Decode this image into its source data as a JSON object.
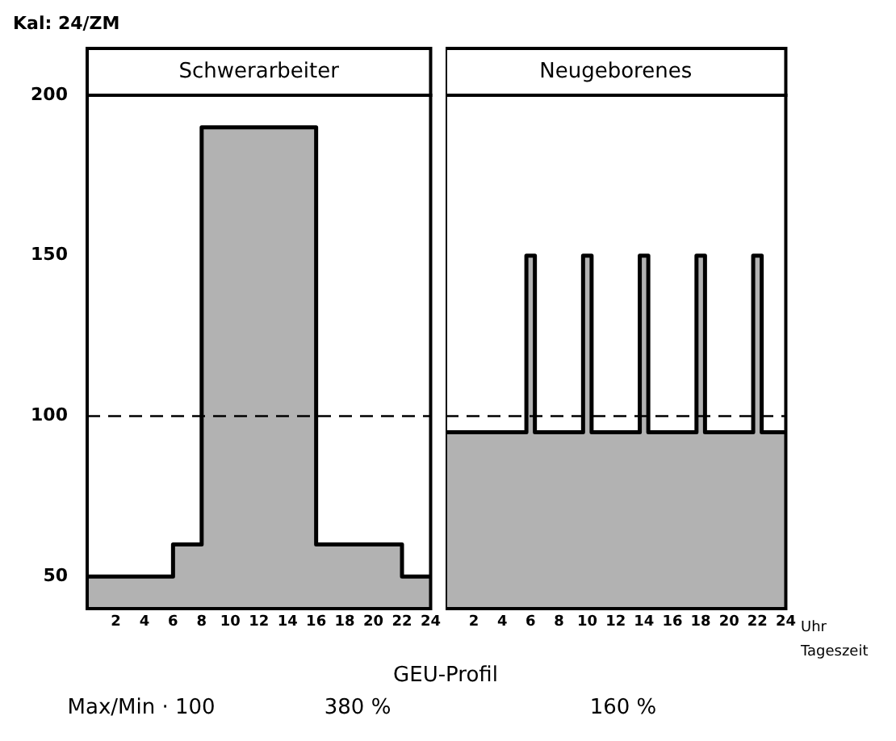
{
  "chart_data": [
    {
      "type": "area",
      "title": "Schwerarbeiter",
      "ylabel": "Kal: 24/ZM",
      "xlabel": "GEU-Profil",
      "x": [
        0,
        6,
        6,
        8,
        8,
        16,
        16,
        22,
        22,
        24
      ],
      "series": [
        {
          "color": "#000000",
          "values": [
            50,
            50,
            60,
            60,
            190,
            190,
            60,
            60,
            50,
            50
          ]
        }
      ],
      "xlim": [
        0,
        24
      ],
      "xticks": [
        2,
        4,
        6,
        8,
        10,
        12,
        14,
        16,
        18,
        20,
        22,
        24
      ],
      "ylim": [
        40,
        200
      ],
      "yticks": [
        50,
        100,
        150,
        200
      ],
      "ref_lines": [
        {
          "axis": "y",
          "value": 100,
          "line_style": "dashed"
        }
      ],
      "annotations": [
        "Max/Min · 100",
        "380 %"
      ],
      "grid": false,
      "legend": false
    },
    {
      "type": "area",
      "title": "Neugeborenes",
      "xlabel": "Uhr Tageszeit",
      "x": [
        0,
        5.7,
        5.7,
        6.3,
        6.3,
        9.7,
        9.7,
        10.3,
        10.3,
        13.7,
        13.7,
        14.3,
        14.3,
        17.7,
        17.7,
        18.3,
        18.3,
        21.7,
        21.7,
        22.3,
        22.3,
        24
      ],
      "series": [
        {
          "color": "#000000",
          "values": [
            95,
            95,
            150,
            150,
            95,
            95,
            150,
            150,
            95,
            95,
            150,
            150,
            95,
            95,
            150,
            150,
            95,
            95,
            150,
            150,
            95,
            95
          ]
        }
      ],
      "xlim": [
        0,
        24
      ],
      "xticks": [
        2,
        4,
        6,
        8,
        10,
        12,
        14,
        16,
        18,
        20,
        22,
        24
      ],
      "ylim": [
        40,
        200
      ],
      "yticks": [
        50,
        100,
        150,
        200
      ],
      "tick_labels": "x",
      "ref_lines": [
        {
          "axis": "y",
          "value": 100,
          "line_style": "dashed"
        }
      ],
      "annotations": [
        "160 %"
      ],
      "grid": false,
      "legend": false
    }
  ]
}
